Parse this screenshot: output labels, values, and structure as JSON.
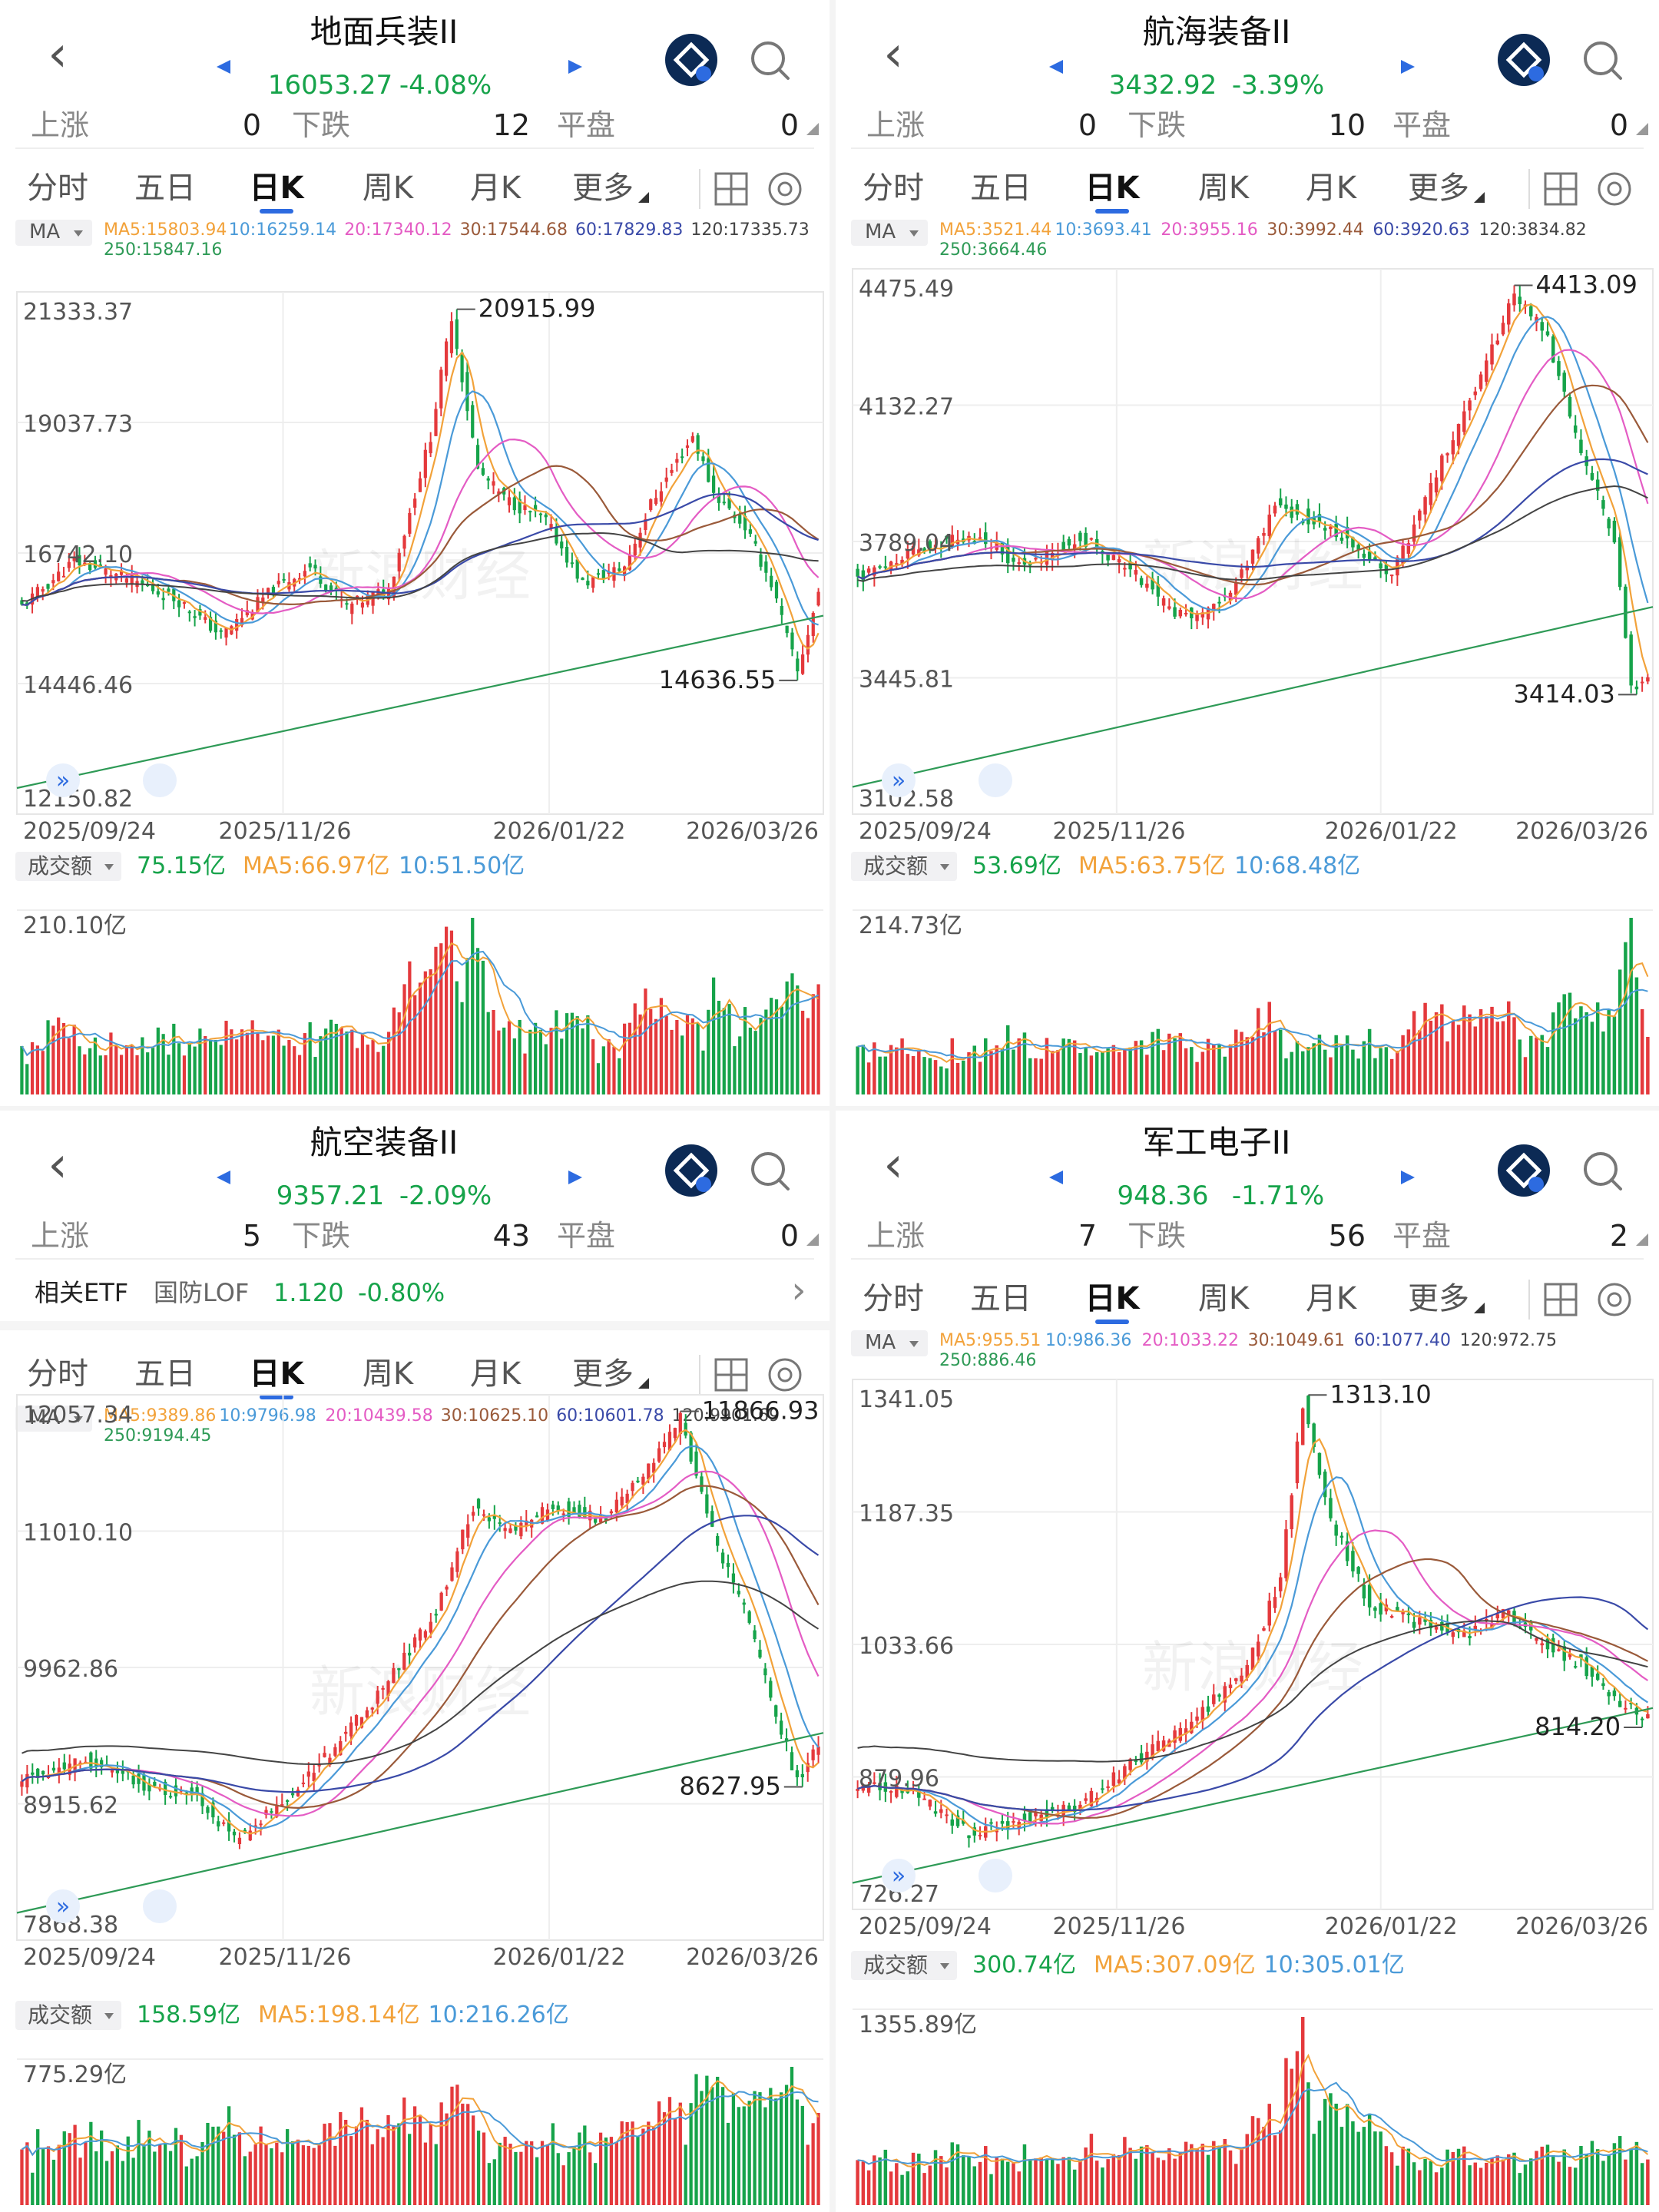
{
  "colors": {
    "up": "#e4393c",
    "down": "#16a34a",
    "ma5": "#f2a23a",
    "ma10": "#4a9ad8",
    "ma20": "#e45cc4",
    "ma30": "#9a5a3a",
    "ma60": "#3a4aa8",
    "ma120": "#444444",
    "ma250": "#2e9a56",
    "vma5": "#f2a23a",
    "vma10": "#4a9ad8",
    "accent": "#2d6be0"
  },
  "nav": {
    "back_icon": "chevron-left-icon",
    "prev_icon": "triangle-left-icon",
    "next_icon": "triangle-right-icon",
    "ai_icon": "ai-assistant-icon",
    "search_icon": "search-icon"
  },
  "tabs": {
    "t1": "分时",
    "t2": "五日",
    "t3": "日K",
    "t4": "周K",
    "t5": "月K",
    "t6": "更多"
  },
  "breadth_labels": {
    "up": "上涨",
    "down": "下跌",
    "flat": "平盘"
  },
  "vol_button": "成交额",
  "ma_button": "MA",
  "panels": [
    {
      "title": "地面兵装II",
      "price": "16053.27",
      "change": "-4.08%",
      "breadth": {
        "up": "0",
        "down": "12",
        "flat": "0"
      },
      "ma_legend": {
        "ma5": "MA5:15803.94",
        "ma10": "10:16259.14",
        "ma20": "20:17340.12",
        "ma30": "30:17544.68",
        "ma60": "60:17829.83",
        "ma120": "120:17335.73",
        "ma250": "250:15847.16"
      },
      "y_labels": [
        "21333.37",
        "19037.73",
        "16742.10",
        "14446.46",
        "12150.82"
      ],
      "high_label": "20915.99",
      "low_label": "14636.55",
      "dates": [
        "2025/09/24",
        "2025/11/26",
        "2026/01/22",
        "2026/03/26"
      ],
      "vol_legend": {
        "v": "75.15亿",
        "ma5": "MA5:66.97亿",
        "ma10": "10:51.50亿"
      },
      "vol_top": "210.10亿"
    },
    {
      "title": "航海装备II",
      "price": "3432.92",
      "change": "-3.39%",
      "breadth": {
        "up": "0",
        "down": "10",
        "flat": "0"
      },
      "ma_legend": {
        "ma5": "MA5:3521.44",
        "ma10": "10:3693.41",
        "ma20": "20:3955.16",
        "ma30": "30:3992.44",
        "ma60": "60:3920.63",
        "ma120": "120:3834.82",
        "ma250": "250:3664.46"
      },
      "y_labels": [
        "4475.49",
        "4132.27",
        "3789.04",
        "3445.81",
        "3102.58"
      ],
      "high_label": "4413.09",
      "low_label": "3414.03",
      "dates": [
        "2025/09/24",
        "2025/11/26",
        "2026/01/22",
        "2026/03/26"
      ],
      "vol_legend": {
        "v": "53.69亿",
        "ma5": "MA5:63.75亿",
        "ma10": "10:68.48亿"
      },
      "vol_top": "214.73亿"
    },
    {
      "title": "航空装备II",
      "price": "9357.21",
      "change": "-2.09%",
      "breadth": {
        "up": "5",
        "down": "43",
        "flat": "0"
      },
      "etf": {
        "label": "相关ETF",
        "name": "国防LOF",
        "price": "1.120",
        "change": "-0.80%"
      },
      "ma_legend": {
        "ma5": "MA5:9389.86",
        "ma10": "10:9796.98",
        "ma20": "20:10439.58",
        "ma30": "30:10625.10",
        "ma60": "60:10601.78",
        "ma120": "120:9901.69",
        "ma250": "250:9194.45"
      },
      "y_labels": [
        "12057.34",
        "11010.10",
        "9962.86",
        "8915.62",
        "7868.38"
      ],
      "high_label": "11866.93",
      "low_label": "8627.95",
      "dates": [
        "2025/09/24",
        "2025/11/26",
        "2026/01/22",
        "2026/03/26"
      ],
      "vol_legend": {
        "v": "158.59亿",
        "ma5": "MA5:198.14亿",
        "ma10": "10:216.26亿"
      },
      "vol_top": "775.29亿"
    },
    {
      "title": "军工电子II",
      "price": "948.36",
      "change": "-1.71%",
      "breadth": {
        "up": "7",
        "down": "56",
        "flat": "2"
      },
      "ma_legend": {
        "ma5": "MA5:955.51",
        "ma10": "10:986.36",
        "ma20": "20:1033.22",
        "ma30": "30:1049.61",
        "ma60": "60:1077.40",
        "ma120": "120:972.75",
        "ma250": "250:886.46"
      },
      "y_labels": [
        "1341.05",
        "1187.35",
        "1033.66",
        "879.96",
        "726.27"
      ],
      "high_label": "1313.10",
      "low_label": "814.20",
      "dates": [
        "2025/09/24",
        "2025/11/26",
        "2026/01/22",
        "2026/03/26"
      ],
      "vol_legend": {
        "v": "300.74亿",
        "ma5": "MA5:307.09亿",
        "ma10": "10:305.01亿"
      },
      "vol_top": "1355.89亿"
    }
  ],
  "chart_data": [
    {
      "type": "candlestick",
      "title": "地面兵装II",
      "x_range": [
        "2025/09/24",
        "2026/03/30"
      ],
      "ylim": [
        12150.82,
        21333.37
      ],
      "anchors": [
        [
          0,
          15800
        ],
        [
          10,
          16600
        ],
        [
          20,
          16300
        ],
        [
          30,
          15900
        ],
        [
          38,
          15300
        ],
        [
          48,
          16100
        ],
        [
          55,
          16500
        ],
        [
          62,
          15800
        ],
        [
          70,
          16100
        ],
        [
          78,
          18800
        ],
        [
          82,
          20915.99
        ],
        [
          87,
          18200
        ],
        [
          92,
          17700
        ],
        [
          100,
          17300
        ],
        [
          107,
          16200
        ],
        [
          115,
          16500
        ],
        [
          120,
          17600
        ],
        [
          128,
          18800
        ],
        [
          132,
          17800
        ],
        [
          138,
          17200
        ],
        [
          143,
          16200
        ],
        [
          148,
          14636.55
        ],
        [
          152,
          16053.27
        ]
      ],
      "vol_peak": "210.10亿",
      "vol_last": "75.15亿"
    },
    {
      "type": "candlestick",
      "title": "航海装备II",
      "x_range": [
        "2025/09/24",
        "2026/03/30"
      ],
      "ylim": [
        3102.58,
        4475.49
      ],
      "anchors": [
        [
          0,
          3700
        ],
        [
          12,
          3780
        ],
        [
          22,
          3800
        ],
        [
          30,
          3720
        ],
        [
          40,
          3800
        ],
        [
          48,
          3730
        ],
        [
          56,
          3620
        ],
        [
          62,
          3600
        ],
        [
          68,
          3680
        ],
        [
          75,
          3880
        ],
        [
          82,
          3840
        ],
        [
          88,
          3800
        ],
        [
          96,
          3700
        ],
        [
          104,
          3960
        ],
        [
          112,
          4200
        ],
        [
          118,
          4413.09
        ],
        [
          124,
          4300
        ],
        [
          130,
          4000
        ],
        [
          136,
          3800
        ],
        [
          139,
          3414.03
        ],
        [
          142,
          3432.92
        ]
      ],
      "vol_peak": "214.73亿",
      "vol_last": "53.69亿"
    },
    {
      "type": "candlestick",
      "title": "航空装备II",
      "x_range": [
        "2025/09/24",
        "2026/03/30"
      ],
      "ylim": [
        7868.38,
        12057.34
      ],
      "anchors": [
        [
          0,
          9100
        ],
        [
          12,
          9250
        ],
        [
          24,
          9050
        ],
        [
          33,
          8990
        ],
        [
          40,
          8627.95
        ],
        [
          48,
          8900
        ],
        [
          58,
          9300
        ],
        [
          68,
          9800
        ],
        [
          78,
          10400
        ],
        [
          85,
          11200
        ],
        [
          92,
          11000
        ],
        [
          100,
          11200
        ],
        [
          110,
          11100
        ],
        [
          118,
          11500
        ],
        [
          124,
          11866.93
        ],
        [
          130,
          11000
        ],
        [
          136,
          10400
        ],
        [
          142,
          9600
        ],
        [
          146,
          9100
        ],
        [
          150,
          9357.21
        ]
      ],
      "vol_peak": "775.29亿",
      "vol_last": "158.59亿"
    },
    {
      "type": "candlestick",
      "title": "军工电子II",
      "x_range": [
        "2025/09/24",
        "2026/03/30"
      ],
      "ylim": [
        726.27,
        1341.05
      ],
      "anchors": [
        [
          0,
          870
        ],
        [
          10,
          860
        ],
        [
          20,
          814.2
        ],
        [
          30,
          830
        ],
        [
          40,
          845
        ],
        [
          50,
          900
        ],
        [
          60,
          940
        ],
        [
          70,
          1010
        ],
        [
          76,
          1110
        ],
        [
          80,
          1313.1
        ],
        [
          85,
          1180
        ],
        [
          92,
          1080
        ],
        [
          100,
          1060
        ],
        [
          110,
          1045
        ],
        [
          116,
          1075
        ],
        [
          122,
          1040
        ],
        [
          130,
          1010
        ],
        [
          136,
          970
        ],
        [
          142,
          948.36
        ]
      ],
      "vol_peak": "1355.89亿",
      "vol_last": "300.74亿"
    }
  ]
}
